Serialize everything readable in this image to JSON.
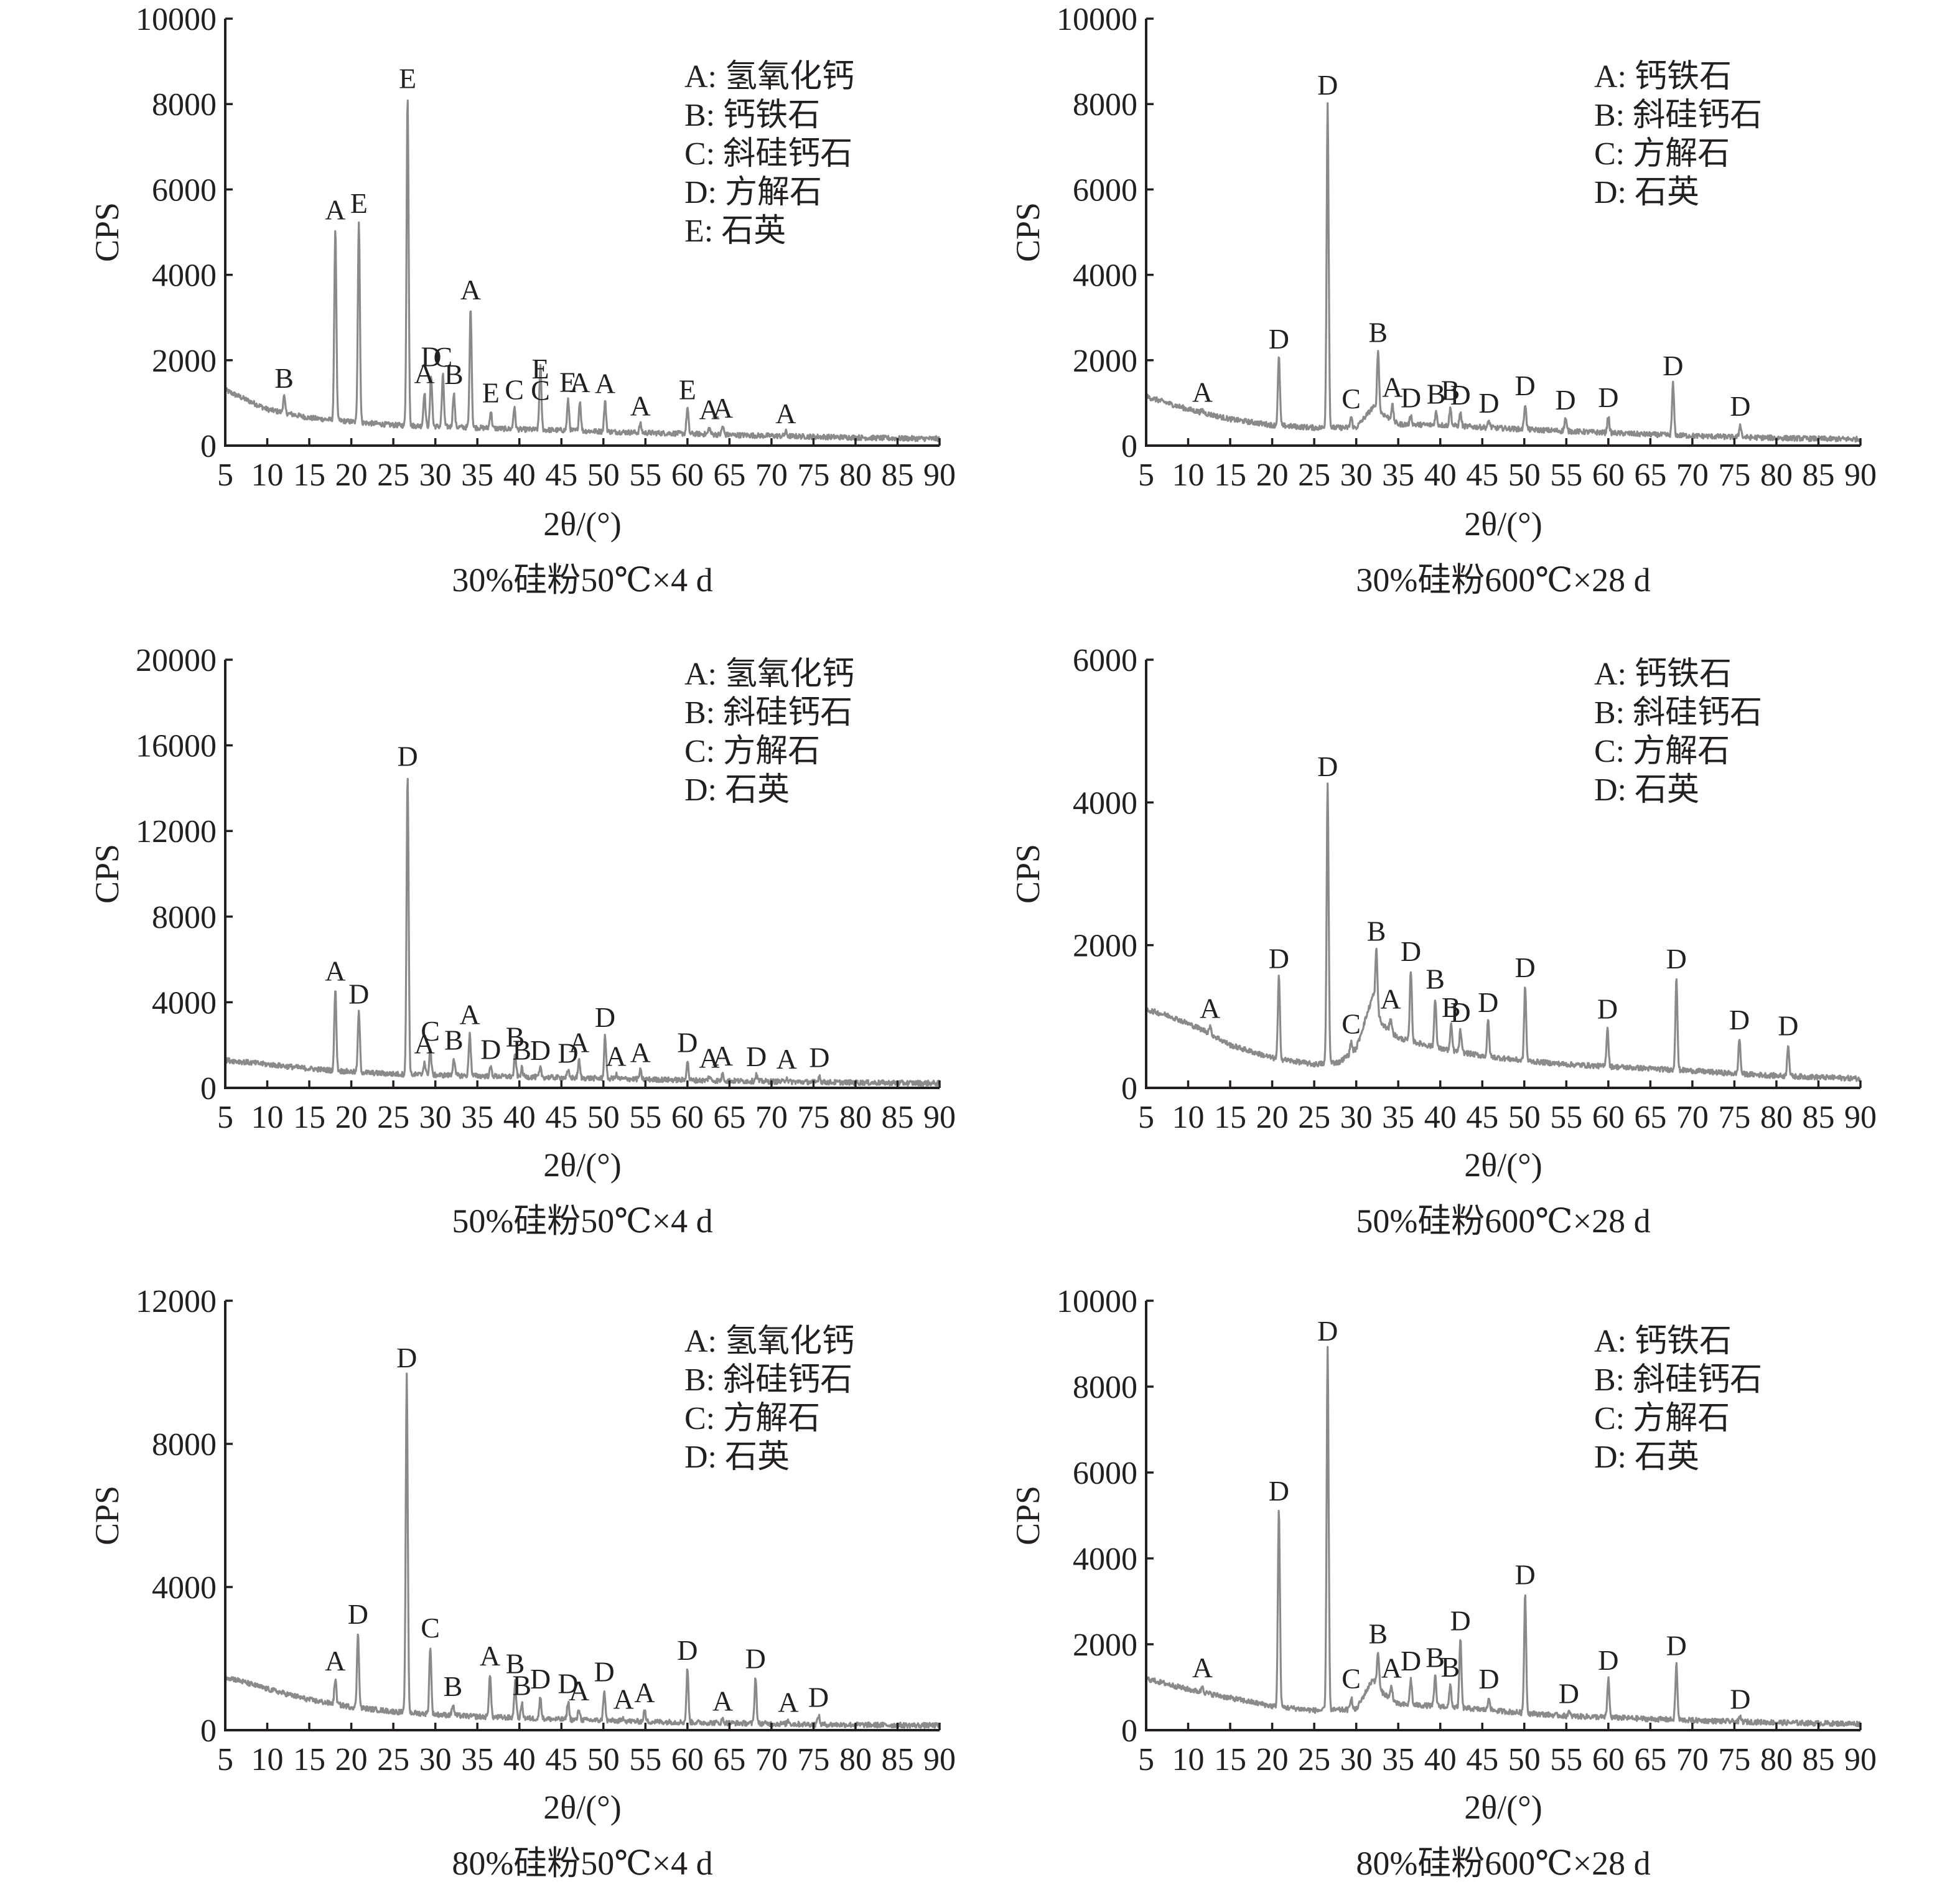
{
  "chart_data": [
    {
      "type": "line",
      "caption": "30%硅粉50℃×4 d",
      "xlabel": "2θ/(°)",
      "ylabel": "CPS",
      "xlim": [
        5,
        90
      ],
      "ylim": [
        0,
        10000
      ],
      "xticks": [
        5,
        10,
        15,
        20,
        25,
        30,
        35,
        40,
        45,
        50,
        55,
        60,
        65,
        70,
        75,
        80,
        85,
        90
      ],
      "yticks": [
        0,
        2000,
        4000,
        6000,
        8000,
        10000
      ],
      "legend": [
        "A: 氢氧化钙",
        "B: 钙铁石",
        "C: 斜硅钙石",
        "D: 方解石",
        "E: 石英"
      ],
      "baseline": [
        [
          5,
          1300
        ],
        [
          10,
          850
        ],
        [
          15,
          650
        ],
        [
          20,
          560
        ],
        [
          25,
          480
        ],
        [
          30,
          450
        ],
        [
          35,
          420
        ],
        [
          40,
          380
        ],
        [
          45,
          360
        ],
        [
          50,
          330
        ],
        [
          55,
          300
        ],
        [
          60,
          280
        ],
        [
          65,
          250
        ],
        [
          70,
          230
        ],
        [
          75,
          210
        ],
        [
          80,
          190
        ],
        [
          85,
          170
        ],
        [
          90,
          160
        ]
      ],
      "peaks": [
        {
          "x": 12.0,
          "y": 380,
          "label": "B"
        },
        {
          "x": 18.1,
          "y": 4500,
          "label": "A"
        },
        {
          "x": 20.9,
          "y": 4700,
          "label": "E"
        },
        {
          "x": 26.7,
          "y": 7700,
          "label": "E"
        },
        {
          "x": 28.7,
          "y": 800,
          "label": "A"
        },
        {
          "x": 29.5,
          "y": 1200,
          "label": "D"
        },
        {
          "x": 30.9,
          "y": 1200,
          "label": "C"
        },
        {
          "x": 32.2,
          "y": 800,
          "label": "B"
        },
        {
          "x": 34.2,
          "y": 2800,
          "label": "A"
        },
        {
          "x": 36.6,
          "y": 400,
          "label": "E"
        },
        {
          "x": 39.4,
          "y": 500,
          "label": "C"
        },
        {
          "x": 42.5,
          "y": 500,
          "label": "C"
        },
        {
          "x": 42.5,
          "y": 1000,
          "label": "E"
        },
        {
          "x": 45.8,
          "y": 700,
          "label": "E"
        },
        {
          "x": 47.2,
          "y": 700,
          "label": "A"
        },
        {
          "x": 50.2,
          "y": 700,
          "label": "A"
        },
        {
          "x": 54.4,
          "y": 200,
          "label": "A"
        },
        {
          "x": 60.0,
          "y": 600,
          "label": "E"
        },
        {
          "x": 62.6,
          "y": 150,
          "label": "A"
        },
        {
          "x": 64.2,
          "y": 200,
          "label": "A"
        },
        {
          "x": 71.7,
          "y": 100,
          "label": "A"
        }
      ]
    },
    {
      "type": "line",
      "caption": "30%硅粉600℃×28 d",
      "xlabel": "2θ/(°)",
      "ylabel": "CPS",
      "xlim": [
        5,
        90
      ],
      "ylim": [
        0,
        10000
      ],
      "xticks": [
        5,
        10,
        15,
        20,
        25,
        30,
        35,
        40,
        45,
        50,
        55,
        60,
        65,
        70,
        75,
        80,
        85,
        90
      ],
      "yticks": [
        0,
        2000,
        4000,
        6000,
        8000,
        10000
      ],
      "legend": [
        "A: 钙铁石",
        "B: 斜硅钙石",
        "C: 方解石",
        "D: 石英"
      ],
      "baseline": [
        [
          5,
          1150
        ],
        [
          10,
          850
        ],
        [
          15,
          620
        ],
        [
          20,
          480
        ],
        [
          25,
          420
        ],
        [
          30,
          420
        ],
        [
          32,
          900
        ],
        [
          35,
          500
        ],
        [
          40,
          480
        ],
        [
          45,
          430
        ],
        [
          50,
          380
        ],
        [
          55,
          340
        ],
        [
          60,
          300
        ],
        [
          65,
          260
        ],
        [
          70,
          230
        ],
        [
          75,
          200
        ],
        [
          80,
          180
        ],
        [
          85,
          160
        ],
        [
          90,
          150
        ]
      ],
      "peaks": [
        {
          "x": 11.7,
          "y": 50,
          "label": "A"
        },
        {
          "x": 20.8,
          "y": 1600,
          "label": "D"
        },
        {
          "x": 26.6,
          "y": 7600,
          "label": "D"
        },
        {
          "x": 29.4,
          "y": 250,
          "label": "C"
        },
        {
          "x": 32.6,
          "y": 1400,
          "label": "B"
        },
        {
          "x": 34.3,
          "y": 350,
          "label": "A"
        },
        {
          "x": 36.5,
          "y": 200,
          "label": "D"
        },
        {
          "x": 39.5,
          "y": 300,
          "label": "B"
        },
        {
          "x": 41.2,
          "y": 400,
          "label": "B"
        },
        {
          "x": 42.4,
          "y": 300,
          "label": "D"
        },
        {
          "x": 45.8,
          "y": 150,
          "label": "D"
        },
        {
          "x": 50.1,
          "y": 600,
          "label": "D"
        },
        {
          "x": 54.9,
          "y": 300,
          "label": "D"
        },
        {
          "x": 60.0,
          "y": 400,
          "label": "D"
        },
        {
          "x": 67.7,
          "y": 1200,
          "label": "D"
        },
        {
          "x": 75.7,
          "y": 300,
          "label": "D"
        }
      ]
    },
    {
      "type": "line",
      "caption": "50%硅粉50℃×4 d",
      "xlabel": "2θ/(°)",
      "ylabel": "CPS",
      "xlim": [
        5,
        90
      ],
      "ylim": [
        0,
        20000
      ],
      "xticks": [
        5,
        10,
        15,
        20,
        25,
        30,
        35,
        40,
        45,
        50,
        55,
        60,
        65,
        70,
        75,
        80,
        85,
        90
      ],
      "yticks": [
        0,
        4000,
        8000,
        12000,
        16000,
        20000
      ],
      "legend": [
        "A: 氢氧化钙",
        "B: 斜硅钙石",
        "C: 方解石",
        "D: 石英"
      ],
      "baseline": [
        [
          5,
          1300
        ],
        [
          10,
          1100
        ],
        [
          15,
          900
        ],
        [
          20,
          750
        ],
        [
          25,
          650
        ],
        [
          30,
          600
        ],
        [
          35,
          560
        ],
        [
          40,
          520
        ],
        [
          45,
          480
        ],
        [
          50,
          440
        ],
        [
          55,
          400
        ],
        [
          60,
          360
        ],
        [
          65,
          330
        ],
        [
          70,
          300
        ],
        [
          75,
          270
        ],
        [
          80,
          250
        ],
        [
          85,
          230
        ],
        [
          90,
          220
        ]
      ],
      "peaks": [
        {
          "x": 18.1,
          "y": 3800,
          "label": "A"
        },
        {
          "x": 20.9,
          "y": 2800,
          "label": "D"
        },
        {
          "x": 26.7,
          "y": 14000,
          "label": "D"
        },
        {
          "x": 28.7,
          "y": 600,
          "label": "A"
        },
        {
          "x": 29.4,
          "y": 1200,
          "label": "C"
        },
        {
          "x": 32.2,
          "y": 800,
          "label": "B"
        },
        {
          "x": 34.1,
          "y": 2000,
          "label": "A"
        },
        {
          "x": 36.6,
          "y": 400,
          "label": "D"
        },
        {
          "x": 39.5,
          "y": 1000,
          "label": "B"
        },
        {
          "x": 40.3,
          "y": 400,
          "label": "B"
        },
        {
          "x": 42.5,
          "y": 400,
          "label": "D"
        },
        {
          "x": 45.8,
          "y": 300,
          "label": "D"
        },
        {
          "x": 47.1,
          "y": 800,
          "label": "A"
        },
        {
          "x": 50.2,
          "y": 2000,
          "label": "D"
        },
        {
          "x": 51.5,
          "y": 200,
          "label": "A"
        },
        {
          "x": 54.4,
          "y": 400,
          "label": "A"
        },
        {
          "x": 60.0,
          "y": 900,
          "label": "D"
        },
        {
          "x": 62.6,
          "y": 200,
          "label": "A"
        },
        {
          "x": 64.2,
          "y": 300,
          "label": "A"
        },
        {
          "x": 68.2,
          "y": 300,
          "label": "D"
        },
        {
          "x": 71.8,
          "y": 200,
          "label": "A"
        },
        {
          "x": 75.7,
          "y": 300,
          "label": "D"
        }
      ]
    },
    {
      "type": "line",
      "caption": "50%硅粉600℃×28 d",
      "xlabel": "2θ/(°)",
      "ylabel": "CPS",
      "xlim": [
        5,
        90
      ],
      "ylim": [
        0,
        6000
      ],
      "xticks": [
        5,
        10,
        15,
        20,
        25,
        30,
        35,
        40,
        45,
        50,
        55,
        60,
        65,
        70,
        75,
        80,
        85,
        90
      ],
      "yticks": [
        0,
        2000,
        4000,
        6000
      ],
      "legend": [
        "A: 钙铁石",
        "B: 斜硅钙石",
        "C: 方解石",
        "D: 石英"
      ],
      "baseline": [
        [
          5,
          1100
        ],
        [
          8,
          1000
        ],
        [
          12,
          800
        ],
        [
          15,
          600
        ],
        [
          20,
          420
        ],
        [
          25,
          330
        ],
        [
          28,
          360
        ],
        [
          30,
          550
        ],
        [
          32,
          1300
        ],
        [
          33,
          900
        ],
        [
          35,
          700
        ],
        [
          40,
          550
        ],
        [
          45,
          450
        ],
        [
          50,
          380
        ],
        [
          55,
          330
        ],
        [
          60,
          300
        ],
        [
          65,
          270
        ],
        [
          70,
          240
        ],
        [
          75,
          200
        ],
        [
          80,
          170
        ],
        [
          85,
          150
        ],
        [
          90,
          130
        ]
      ],
      "peaks": [
        {
          "x": 12.6,
          "y": 100,
          "label": "A"
        },
        {
          "x": 20.8,
          "y": 1150,
          "label": "D"
        },
        {
          "x": 26.6,
          "y": 3900,
          "label": "D"
        },
        {
          "x": 29.4,
          "y": 150,
          "label": "C"
        },
        {
          "x": 32.4,
          "y": 800,
          "label": "B"
        },
        {
          "x": 34.1,
          "y": 200,
          "label": "A"
        },
        {
          "x": 36.5,
          "y": 1000,
          "label": "D"
        },
        {
          "x": 39.4,
          "y": 700,
          "label": "B"
        },
        {
          "x": 41.3,
          "y": 350,
          "label": "B"
        },
        {
          "x": 42.4,
          "y": 300,
          "label": "D"
        },
        {
          "x": 45.7,
          "y": 500,
          "label": "D"
        },
        {
          "x": 50.1,
          "y": 1050,
          "label": "D"
        },
        {
          "x": 59.9,
          "y": 550,
          "label": "D"
        },
        {
          "x": 68.1,
          "y": 1300,
          "label": "D"
        },
        {
          "x": 75.6,
          "y": 500,
          "label": "D"
        },
        {
          "x": 81.4,
          "y": 450,
          "label": "D"
        }
      ]
    },
    {
      "type": "line",
      "caption": "80%硅粉50℃×4 d",
      "xlabel": "2θ/(°)",
      "ylabel": "CPS",
      "xlim": [
        5,
        90
      ],
      "ylim": [
        0,
        12000
      ],
      "xticks": [
        5,
        10,
        15,
        20,
        25,
        30,
        35,
        40,
        45,
        50,
        55,
        60,
        65,
        70,
        75,
        80,
        85,
        90
      ],
      "yticks": [
        0,
        4000,
        8000,
        12000
      ],
      "legend": [
        "A: 氢氧化钙",
        "B: 斜硅钙石",
        "C: 方解石",
        "D: 石英"
      ],
      "baseline": [
        [
          5,
          1500
        ],
        [
          10,
          1150
        ],
        [
          15,
          850
        ],
        [
          20,
          650
        ],
        [
          25,
          520
        ],
        [
          30,
          440
        ],
        [
          35,
          380
        ],
        [
          40,
          340
        ],
        [
          45,
          300
        ],
        [
          50,
          270
        ],
        [
          55,
          240
        ],
        [
          60,
          220
        ],
        [
          65,
          200
        ],
        [
          70,
          180
        ],
        [
          75,
          160
        ],
        [
          80,
          150
        ],
        [
          85,
          140
        ],
        [
          90,
          130
        ]
      ],
      "peaks": [
        {
          "x": 18.1,
          "y": 700,
          "label": "A"
        },
        {
          "x": 20.8,
          "y": 2100,
          "label": "D"
        },
        {
          "x": 26.6,
          "y": 9400,
          "label": "D"
        },
        {
          "x": 29.4,
          "y": 1900,
          "label": "C"
        },
        {
          "x": 32.1,
          "y": 300,
          "label": "B"
        },
        {
          "x": 36.5,
          "y": 1200,
          "label": "A"
        },
        {
          "x": 39.5,
          "y": 1000,
          "label": "B"
        },
        {
          "x": 40.3,
          "y": 400,
          "label": "B"
        },
        {
          "x": 42.5,
          "y": 600,
          "label": "D"
        },
        {
          "x": 45.8,
          "y": 500,
          "label": "D"
        },
        {
          "x": 47.1,
          "y": 300,
          "label": "A"
        },
        {
          "x": 50.1,
          "y": 850,
          "label": "D"
        },
        {
          "x": 52.4,
          "y": 100,
          "label": "A"
        },
        {
          "x": 54.9,
          "y": 300,
          "label": "A"
        },
        {
          "x": 60.0,
          "y": 1500,
          "label": "D"
        },
        {
          "x": 64.2,
          "y": 100,
          "label": "A"
        },
        {
          "x": 68.1,
          "y": 1300,
          "label": "D"
        },
        {
          "x": 72.0,
          "y": 100,
          "label": "A"
        },
        {
          "x": 75.6,
          "y": 250,
          "label": "D"
        }
      ]
    },
    {
      "type": "line",
      "caption": "80%硅粉600℃×28 d",
      "xlabel": "2θ/(°)",
      "ylabel": "CPS",
      "xlim": [
        5,
        90
      ],
      "ylim": [
        0,
        10000
      ],
      "xticks": [
        5,
        10,
        15,
        20,
        25,
        30,
        35,
        40,
        45,
        50,
        55,
        60,
        65,
        70,
        75,
        80,
        85,
        90
      ],
      "yticks": [
        0,
        2000,
        4000,
        6000,
        8000,
        10000
      ],
      "legend": [
        "A: 钙铁石",
        "B: 斜硅钙石",
        "C: 方解石",
        "D: 石英"
      ],
      "baseline": [
        [
          5,
          1200
        ],
        [
          10,
          950
        ],
        [
          15,
          750
        ],
        [
          20,
          560
        ],
        [
          25,
          460
        ],
        [
          30,
          480
        ],
        [
          32,
          1200
        ],
        [
          33,
          900
        ],
        [
          35,
          600
        ],
        [
          40,
          560
        ],
        [
          45,
          480
        ],
        [
          50,
          400
        ],
        [
          55,
          330
        ],
        [
          60,
          300
        ],
        [
          65,
          260
        ],
        [
          70,
          230
        ],
        [
          75,
          200
        ],
        [
          80,
          180
        ],
        [
          85,
          160
        ],
        [
          90,
          150
        ]
      ],
      "peaks": [
        {
          "x": 11.7,
          "y": 150,
          "label": "A"
        },
        {
          "x": 20.8,
          "y": 4600,
          "label": "D"
        },
        {
          "x": 26.6,
          "y": 8400,
          "label": "D"
        },
        {
          "x": 29.4,
          "y": 300,
          "label": "C"
        },
        {
          "x": 32.6,
          "y": 800,
          "label": "B"
        },
        {
          "x": 34.2,
          "y": 300,
          "label": "A"
        },
        {
          "x": 36.5,
          "y": 600,
          "label": "D"
        },
        {
          "x": 39.4,
          "y": 700,
          "label": "B"
        },
        {
          "x": 41.2,
          "y": 500,
          "label": "B"
        },
        {
          "x": 42.4,
          "y": 1600,
          "label": "D"
        },
        {
          "x": 45.8,
          "y": 300,
          "label": "D"
        },
        {
          "x": 50.1,
          "y": 2800,
          "label": "D"
        },
        {
          "x": 55.3,
          "y": 100,
          "label": "D"
        },
        {
          "x": 60.0,
          "y": 900,
          "label": "D"
        },
        {
          "x": 68.1,
          "y": 1300,
          "label": "D"
        },
        {
          "x": 75.7,
          "y": 100,
          "label": "D"
        }
      ]
    }
  ]
}
